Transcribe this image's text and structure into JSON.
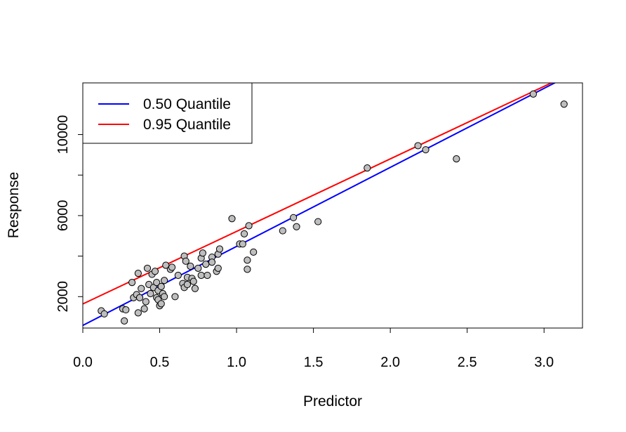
{
  "chart_data": {
    "type": "scatter",
    "title": "",
    "xlabel": "Predictor",
    "ylabel": "Response",
    "xlim": [
      0,
      3.25
    ],
    "ylim": [
      450,
      12550
    ],
    "x_ticks": [
      0.0,
      0.5,
      1.0,
      1.5,
      2.0,
      2.5,
      3.0
    ],
    "x_tick_labels": [
      "0.0",
      "0.5",
      "1.0",
      "1.5",
      "2.0",
      "2.5",
      "3.0"
    ],
    "y_ticks": [
      2000,
      6000,
      10000
    ],
    "y_tick_labels": [
      "2000",
      "6000",
      "10000"
    ],
    "y_minor_ticks": [
      4000,
      8000
    ],
    "grid": false,
    "legend_position": "top-left",
    "point_color": "#bebebe",
    "points": [
      {
        "x": 0.12,
        "y": 1300
      },
      {
        "x": 0.14,
        "y": 1150
      },
      {
        "x": 0.26,
        "y": 1400
      },
      {
        "x": 0.27,
        "y": 800
      },
      {
        "x": 0.28,
        "y": 1350
      },
      {
        "x": 0.32,
        "y": 2700
      },
      {
        "x": 0.33,
        "y": 1950
      },
      {
        "x": 0.35,
        "y": 2100
      },
      {
        "x": 0.36,
        "y": 1200
      },
      {
        "x": 0.36,
        "y": 3150
      },
      {
        "x": 0.37,
        "y": 1950
      },
      {
        "x": 0.38,
        "y": 2400
      },
      {
        "x": 0.4,
        "y": 1400
      },
      {
        "x": 0.41,
        "y": 1750
      },
      {
        "x": 0.42,
        "y": 3400
      },
      {
        "x": 0.43,
        "y": 2600
      },
      {
        "x": 0.44,
        "y": 2150
      },
      {
        "x": 0.45,
        "y": 3100
      },
      {
        "x": 0.46,
        "y": 2450
      },
      {
        "x": 0.47,
        "y": 3250
      },
      {
        "x": 0.48,
        "y": 1950
      },
      {
        "x": 0.48,
        "y": 2700
      },
      {
        "x": 0.49,
        "y": 2300
      },
      {
        "x": 0.49,
        "y": 1850
      },
      {
        "x": 0.5,
        "y": 1550
      },
      {
        "x": 0.51,
        "y": 2500
      },
      {
        "x": 0.51,
        "y": 1650
      },
      {
        "x": 0.52,
        "y": 2150
      },
      {
        "x": 0.53,
        "y": 2800
      },
      {
        "x": 0.53,
        "y": 2000
      },
      {
        "x": 0.54,
        "y": 3550
      },
      {
        "x": 0.57,
        "y": 3350
      },
      {
        "x": 0.58,
        "y": 3450
      },
      {
        "x": 0.6,
        "y": 2000
      },
      {
        "x": 0.62,
        "y": 3050
      },
      {
        "x": 0.65,
        "y": 2650
      },
      {
        "x": 0.66,
        "y": 4000
      },
      {
        "x": 0.66,
        "y": 2450
      },
      {
        "x": 0.67,
        "y": 3750
      },
      {
        "x": 0.68,
        "y": 2600
      },
      {
        "x": 0.68,
        "y": 2950
      },
      {
        "x": 0.7,
        "y": 3500
      },
      {
        "x": 0.71,
        "y": 2900
      },
      {
        "x": 0.72,
        "y": 2750
      },
      {
        "x": 0.73,
        "y": 2400
      },
      {
        "x": 0.75,
        "y": 3400
      },
      {
        "x": 0.77,
        "y": 3050
      },
      {
        "x": 0.77,
        "y": 3900
      },
      {
        "x": 0.78,
        "y": 4150
      },
      {
        "x": 0.8,
        "y": 3600
      },
      {
        "x": 0.81,
        "y": 3050
      },
      {
        "x": 0.84,
        "y": 3950
      },
      {
        "x": 0.84,
        "y": 3700
      },
      {
        "x": 0.87,
        "y": 3250
      },
      {
        "x": 0.88,
        "y": 4100
      },
      {
        "x": 0.88,
        "y": 3400
      },
      {
        "x": 0.89,
        "y": 4350
      },
      {
        "x": 0.97,
        "y": 5850
      },
      {
        "x": 1.02,
        "y": 4600
      },
      {
        "x": 1.04,
        "y": 4600
      },
      {
        "x": 1.05,
        "y": 5100
      },
      {
        "x": 1.07,
        "y": 3800
      },
      {
        "x": 1.07,
        "y": 3350
      },
      {
        "x": 1.08,
        "y": 5500
      },
      {
        "x": 1.11,
        "y": 4200
      },
      {
        "x": 1.3,
        "y": 5250
      },
      {
        "x": 1.37,
        "y": 5900
      },
      {
        "x": 1.39,
        "y": 5450
      },
      {
        "x": 1.53,
        "y": 5700
      },
      {
        "x": 1.85,
        "y": 8350
      },
      {
        "x": 2.18,
        "y": 9450
      },
      {
        "x": 2.23,
        "y": 9250
      },
      {
        "x": 2.43,
        "y": 8800
      },
      {
        "x": 2.93,
        "y": 12000
      },
      {
        "x": 3.13,
        "y": 11500
      }
    ],
    "series": [
      {
        "name": "0.50 Quantile",
        "color": "#0000ff",
        "intercept": 580,
        "slope": 3900
      },
      {
        "name": "0.95 Quantile",
        "color": "#ff0000",
        "intercept": 1640,
        "slope": 3580
      }
    ]
  }
}
